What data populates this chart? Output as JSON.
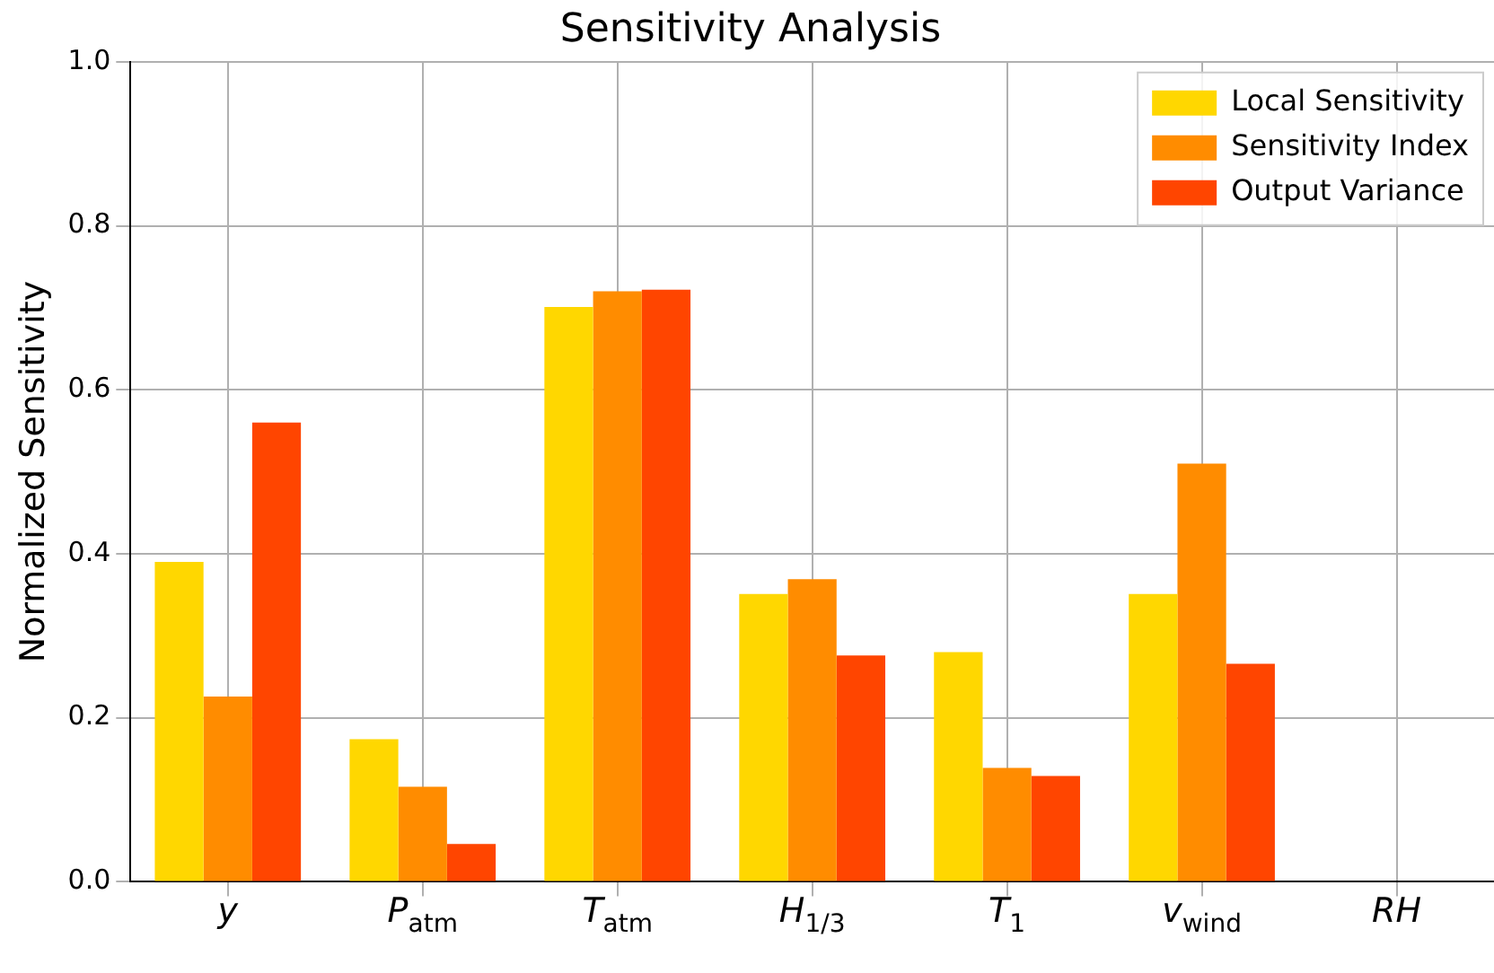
{
  "chart_data": {
    "type": "bar",
    "title": "Sensitivity Analysis",
    "ylabel": "Normalized Sensitivity",
    "categories": [
      "y",
      "P$_{atm}$",
      "T$_{atm}$",
      "H$_{1/3}$",
      "T$_{1}$",
      "v$_{wind}$",
      "RH"
    ],
    "series": [
      {
        "name": "Local Sensitivity",
        "color": "#ffd700",
        "values": [
          0.39,
          0.174,
          0.701,
          0.351,
          0.28,
          0.351,
          0
        ]
      },
      {
        "name": "Sensitivity Index",
        "color": "#ff8c00",
        "values": [
          0.226,
          0.116,
          0.72,
          0.369,
          0.139,
          0.51,
          0
        ]
      },
      {
        "name": "Output Variance",
        "color": "#ff4500",
        "values": [
          0.56,
          0.046,
          0.722,
          0.276,
          0.129,
          0.266,
          0
        ]
      }
    ],
    "ylim": [
      0,
      1
    ],
    "yticks": [
      {
        "value": 0,
        "label": "0.0"
      },
      0.2,
      0.4,
      0.6,
      0.8,
      {
        "value": 1,
        "label": "1.0"
      }
    ],
    "grid": true,
    "legend": "top right"
  }
}
